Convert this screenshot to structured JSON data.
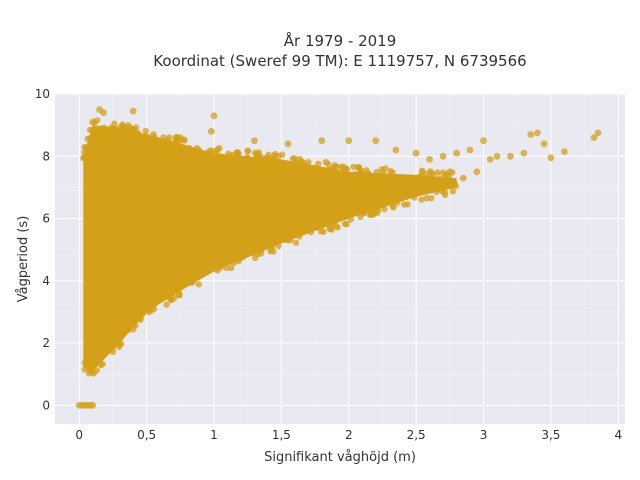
{
  "chart_data": {
    "type": "scatter",
    "title": "År 1979 - 2019",
    "subtitle": "Koordinat (Sweref 99 TM): E 1119757, N 6739566",
    "xlabel": "Signifikant våghöjd (m)",
    "ylabel": "Vågperiod (s)",
    "xlim": [
      -0.18,
      4.05
    ],
    "ylim": [
      -0.6,
      10.0
    ],
    "x_ticks": [
      0,
      0.5,
      1,
      1.5,
      2,
      2.5,
      3,
      3.5,
      4
    ],
    "x_tick_labels": [
      "0",
      "0,5",
      "1",
      "1,5",
      "2",
      "2,5",
      "3",
      "3,5",
      "4"
    ],
    "y_ticks": [
      0,
      2,
      4,
      6,
      8,
      10
    ],
    "y_tick_labels": [
      "0",
      "2",
      "4",
      "6",
      "8",
      "10"
    ],
    "grid": true,
    "legend": "none",
    "color": "#d4a017",
    "plot_background": "#e9e9f2",
    "dense_region": {
      "description_free": true,
      "upper_envelope": [
        [
          0.03,
          8.0
        ],
        [
          0.1,
          9.0
        ],
        [
          0.3,
          8.9
        ],
        [
          0.6,
          8.6
        ],
        [
          1.0,
          8.1
        ],
        [
          1.5,
          7.9
        ],
        [
          2.0,
          7.5
        ],
        [
          2.5,
          7.4
        ],
        [
          2.8,
          7.3
        ]
      ],
      "lower_envelope": [
        [
          0.03,
          1.3
        ],
        [
          0.1,
          1.1
        ],
        [
          0.3,
          2.0
        ],
        [
          0.5,
          3.0
        ],
        [
          0.8,
          3.8
        ],
        [
          1.0,
          4.3
        ],
        [
          1.5,
          5.2
        ],
        [
          2.0,
          6.0
        ],
        [
          2.5,
          6.7
        ],
        [
          2.8,
          7.0
        ]
      ]
    },
    "points": [
      {
        "x": 0.0,
        "y": 0.0
      },
      {
        "x": 0.02,
        "y": 0.0
      },
      {
        "x": 0.04,
        "y": 0.0
      },
      {
        "x": 0.06,
        "y": 0.0
      },
      {
        "x": 0.08,
        "y": 0.0
      },
      {
        "x": 0.1,
        "y": 0.0
      },
      {
        "x": 0.15,
        "y": 9.5
      },
      {
        "x": 0.18,
        "y": 9.4
      },
      {
        "x": 0.4,
        "y": 9.45
      },
      {
        "x": 0.1,
        "y": 9.1
      },
      {
        "x": 0.3,
        "y": 8.9
      },
      {
        "x": 0.35,
        "y": 8.8
      },
      {
        "x": 0.55,
        "y": 8.7
      },
      {
        "x": 0.75,
        "y": 8.6
      },
      {
        "x": 0.98,
        "y": 8.8
      },
      {
        "x": 1.0,
        "y": 9.3
      },
      {
        "x": 1.3,
        "y": 8.5
      },
      {
        "x": 1.55,
        "y": 8.4
      },
      {
        "x": 1.8,
        "y": 8.5
      },
      {
        "x": 2.0,
        "y": 8.5
      },
      {
        "x": 2.2,
        "y": 8.5
      },
      {
        "x": 2.35,
        "y": 8.2
      },
      {
        "x": 2.5,
        "y": 8.1
      },
      {
        "x": 2.6,
        "y": 7.9
      },
      {
        "x": 2.7,
        "y": 8.0
      },
      {
        "x": 2.8,
        "y": 8.1
      },
      {
        "x": 2.9,
        "y": 8.2
      },
      {
        "x": 2.95,
        "y": 7.5
      },
      {
        "x": 3.0,
        "y": 8.5
      },
      {
        "x": 3.05,
        "y": 7.9
      },
      {
        "x": 3.1,
        "y": 8.0
      },
      {
        "x": 3.2,
        "y": 8.0
      },
      {
        "x": 3.3,
        "y": 8.1
      },
      {
        "x": 3.35,
        "y": 8.7
      },
      {
        "x": 3.4,
        "y": 8.75
      },
      {
        "x": 3.45,
        "y": 8.4
      },
      {
        "x": 3.5,
        "y": 7.95
      },
      {
        "x": 3.6,
        "y": 8.15
      },
      {
        "x": 3.82,
        "y": 8.6
      },
      {
        "x": 3.85,
        "y": 8.75
      },
      {
        "x": 2.85,
        "y": 7.3
      },
      {
        "x": 2.75,
        "y": 7.5
      }
    ]
  }
}
